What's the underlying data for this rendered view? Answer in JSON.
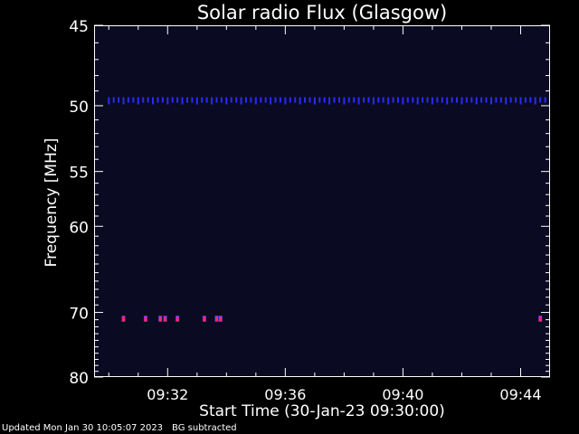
{
  "chart_data": {
    "type": "heatmap",
    "title": "Solar radio Flux (Glasgow)",
    "xlabel": "Start Time (30-Jan-23 09:30:00)",
    "ylabel": "Frequency [MHz]",
    "x_unit": "time",
    "xlim": [
      "09:29:30",
      "09:45:00"
    ],
    "ylim": [
      45,
      80
    ],
    "y_axis_direction": "inverted",
    "x_ticks": [
      "09:32",
      "09:36",
      "09:40",
      "09:44"
    ],
    "y_ticks": [
      45,
      50,
      55,
      60,
      70,
      80
    ],
    "background_color": "#0a0a22",
    "band_frequency_mhz": 49.6,
    "band_color": "#2a2aff",
    "band_times": [
      "09:30:00",
      "09:30:10",
      "09:30:20",
      "09:30:30",
      "09:30:40",
      "09:30:50",
      "09:31:00",
      "09:31:10",
      "09:31:20",
      "09:31:30",
      "09:31:40",
      "09:31:50",
      "09:32:00",
      "09:32:10",
      "09:32:20",
      "09:32:30",
      "09:32:40",
      "09:32:50",
      "09:33:00",
      "09:33:10",
      "09:33:20",
      "09:33:30",
      "09:33:40",
      "09:33:50",
      "09:34:00",
      "09:34:10",
      "09:34:20",
      "09:34:30",
      "09:34:40",
      "09:34:50",
      "09:35:00",
      "09:35:10",
      "09:35:20",
      "09:35:30",
      "09:35:40",
      "09:35:50",
      "09:36:00",
      "09:36:10",
      "09:36:20",
      "09:36:30",
      "09:36:40",
      "09:36:50",
      "09:37:00",
      "09:37:10",
      "09:37:20",
      "09:37:30",
      "09:37:40",
      "09:37:50",
      "09:38:00",
      "09:38:10",
      "09:38:20",
      "09:38:30",
      "09:38:40",
      "09:38:50",
      "09:39:00",
      "09:39:10",
      "09:39:20",
      "09:39:30",
      "09:39:40",
      "09:39:50",
      "09:40:00",
      "09:40:10",
      "09:40:20",
      "09:40:30",
      "09:40:40",
      "09:40:50",
      "09:41:00",
      "09:41:10",
      "09:41:20",
      "09:41:30",
      "09:41:40",
      "09:41:50",
      "09:42:00",
      "09:42:10",
      "09:42:20",
      "09:42:30",
      "09:42:40",
      "09:42:50",
      "09:43:00",
      "09:43:10",
      "09:43:20",
      "09:43:30",
      "09:43:40",
      "09:43:50",
      "09:44:00",
      "09:44:10",
      "09:44:20",
      "09:44:30",
      "09:44:40",
      "09:44:50"
    ],
    "bright_spots": [
      {
        "time": "09:30:30",
        "freq_mhz": 70.8,
        "color": "#ff2a66"
      },
      {
        "time": "09:31:15",
        "freq_mhz": 70.8,
        "color": "#ff2a66"
      },
      {
        "time": "09:31:45",
        "freq_mhz": 70.8,
        "color": "#ff2a66"
      },
      {
        "time": "09:31:55",
        "freq_mhz": 70.8,
        "color": "#ff2a66"
      },
      {
        "time": "09:32:20",
        "freq_mhz": 70.8,
        "color": "#ff2a66"
      },
      {
        "time": "09:33:15",
        "freq_mhz": 70.8,
        "color": "#ff2a66"
      },
      {
        "time": "09:33:40",
        "freq_mhz": 70.8,
        "color": "#ff2a66"
      },
      {
        "time": "09:33:48",
        "freq_mhz": 70.8,
        "color": "#ff2a66"
      },
      {
        "time": "09:44:40",
        "freq_mhz": 70.8,
        "color": "#ff2a66"
      }
    ]
  },
  "footer": {
    "updated": "Updated Mon Jan 30 10:05:07 2023",
    "note": "BG subtracted"
  }
}
